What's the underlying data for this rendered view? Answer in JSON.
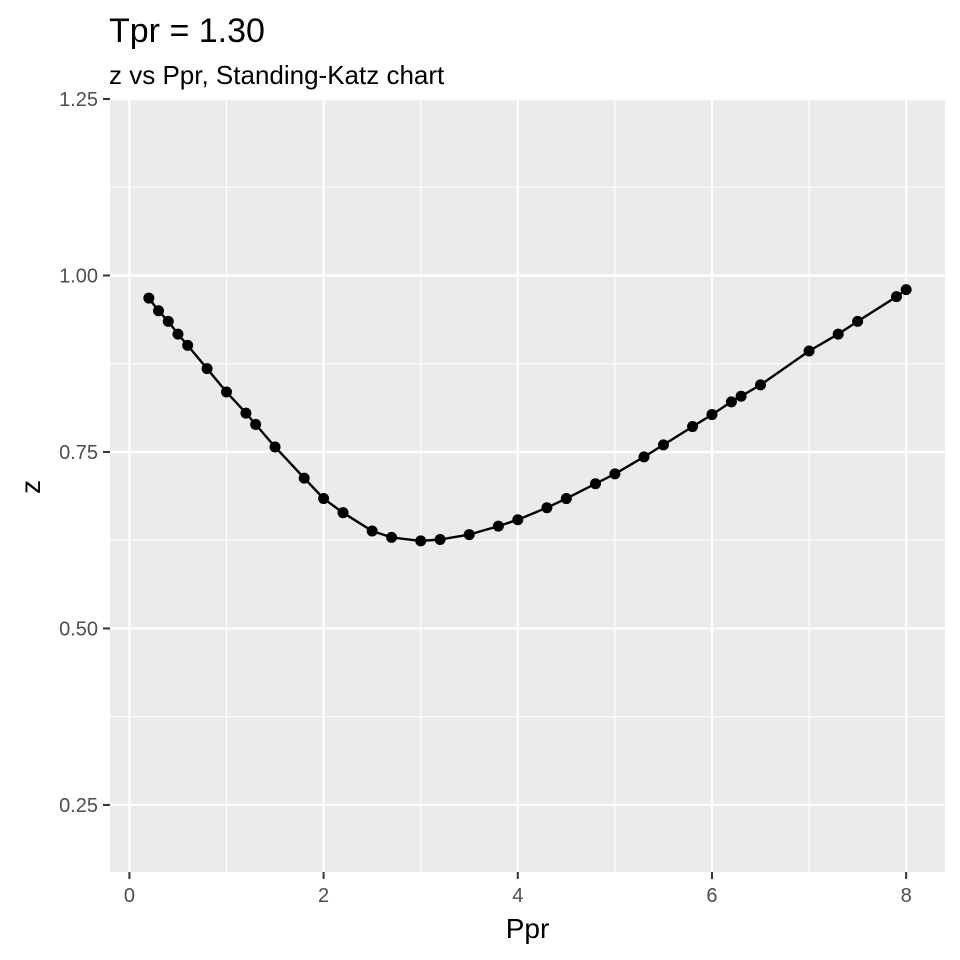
{
  "chart_data": {
    "type": "line",
    "title": "Tpr = 1.30",
    "subtitle": "z vs Ppr, Standing-Katz chart",
    "xlabel": "Ppr",
    "ylabel": "z",
    "xlim": [
      -0.2,
      8.4
    ],
    "ylim": [
      0.155,
      1.25
    ],
    "x_ticks": [
      0,
      2,
      4,
      6,
      8
    ],
    "x_tick_labels": [
      "0",
      "2",
      "4",
      "6",
      "8"
    ],
    "y_ticks": [
      0.25,
      0.5,
      0.75,
      1.0,
      1.25
    ],
    "y_tick_labels": [
      "0.25",
      "0.50",
      "0.75",
      "1.00",
      "1.25"
    ],
    "x_minor": [
      1,
      3,
      5,
      7
    ],
    "y_minor": [
      0.375,
      0.625,
      0.875,
      1.125
    ],
    "grid": true,
    "legend": "none",
    "colors": {
      "panel": "#ebebeb",
      "grid": "#ffffff",
      "series": "#000000",
      "tick": "#333333"
    },
    "series": [
      {
        "x": [
          0.2,
          0.3,
          0.4,
          0.5,
          0.6,
          0.8,
          1.0,
          1.2,
          1.3,
          1.5,
          1.8,
          2.0,
          2.2,
          2.5,
          2.7,
          3.0,
          3.2,
          3.5,
          3.8,
          4.0,
          4.3,
          4.5,
          4.8,
          5.0,
          5.3,
          5.5,
          5.8,
          6.0,
          6.2,
          6.3,
          6.5,
          7.0,
          7.3,
          7.5,
          7.9,
          8.0
        ],
        "y": [
          0.968,
          0.95,
          0.935,
          0.917,
          0.901,
          0.868,
          0.835,
          0.805,
          0.789,
          0.757,
          0.713,
          0.684,
          0.664,
          0.638,
          0.629,
          0.624,
          0.626,
          0.633,
          0.645,
          0.654,
          0.671,
          0.684,
          0.705,
          0.719,
          0.743,
          0.76,
          0.786,
          0.803,
          0.821,
          0.829,
          0.845,
          0.893,
          0.917,
          0.935,
          0.97,
          0.98
        ]
      }
    ]
  }
}
